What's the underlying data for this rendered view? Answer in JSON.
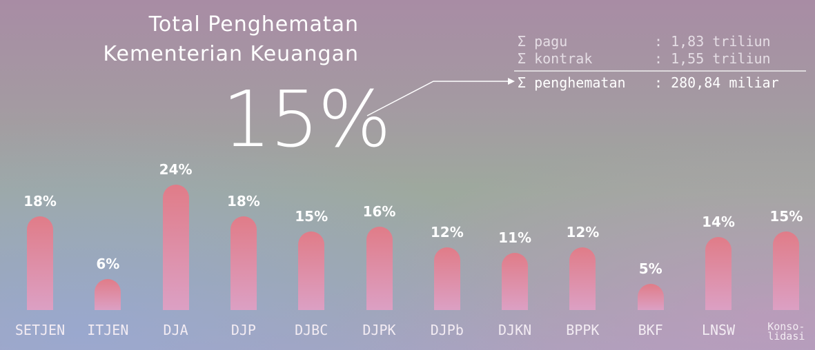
{
  "chart_data": {
    "type": "bar",
    "title": [
      "Total Penghematan",
      "Kementerian Keuangan"
    ],
    "headline": "15%",
    "summary": [
      {
        "label": "Σ pagu",
        "value": ": 1,83 triliun"
      },
      {
        "label": "Σ kontrak",
        "value": ": 1,55 triliun"
      },
      {
        "label": "Σ penghematan",
        "value": ": 280,84 miliar"
      }
    ],
    "categories": [
      "SETJEN",
      "ITJEN",
      "DJA",
      "DJP",
      "DJBC",
      "DJPK",
      "DJPb",
      "DJKN",
      "BPPK",
      "BKF",
      "LNSW",
      "Konso-\nlidasi"
    ],
    "values": [
      18,
      6,
      24,
      18,
      15,
      16,
      12,
      11,
      12,
      5,
      14,
      15
    ],
    "value_labels": [
      "18%",
      "6%",
      "24%",
      "18%",
      "15%",
      "16%",
      "12%",
      "11%",
      "12%",
      "5%",
      "14%",
      "15%"
    ],
    "color": "#e07c88"
  }
}
